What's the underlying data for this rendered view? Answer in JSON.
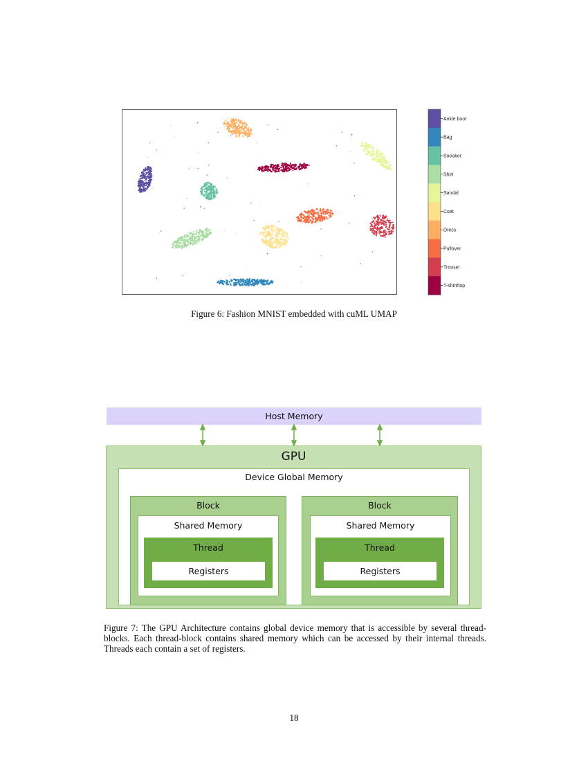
{
  "figure6": {
    "caption": "Figure 6: Fashion MNIST embedded with cuML UMAP",
    "chart_data": {
      "type": "scatter",
      "title": "",
      "xlabel": "",
      "ylabel": "",
      "grid": false,
      "legend_placement": "right (colorbar)",
      "classes": [
        {
          "name": "Ankle boot",
          "color": "#5e4fa2"
        },
        {
          "name": "Bag",
          "color": "#3288bd"
        },
        {
          "name": "Sneaker",
          "color": "#66c2a5"
        },
        {
          "name": "Shirt",
          "color": "#abdda4"
        },
        {
          "name": "Sandal",
          "color": "#e6f598"
        },
        {
          "name": "Coat",
          "color": "#fee08b"
        },
        {
          "name": "Dress",
          "color": "#fdae61"
        },
        {
          "name": "Pullover",
          "color": "#f46d43"
        },
        {
          "name": "Trouser",
          "color": "#d53e4f"
        },
        {
          "name": "T-shirt/top",
          "color": "#9e0142"
        }
      ]
    }
  },
  "figure7": {
    "host_memory": "Host Memory",
    "gpu": "GPU",
    "device_global_memory": "Device Global Memory",
    "blocks": [
      {
        "block": "Block",
        "shared_memory": "Shared Memory",
        "thread": "Thread",
        "registers": "Registers"
      },
      {
        "block": "Block",
        "shared_memory": "Shared Memory",
        "thread": "Thread",
        "registers": "Registers"
      }
    ],
    "colors": {
      "host": "#dcd3fb",
      "gpu": "#c6e0b4",
      "block": "#a9d08e",
      "thread": "#70ad47",
      "arrow": "#70ad47"
    },
    "caption": "Figure 7: The GPU Architecture contains global device memory that is accessible by several thread-blocks. Each thread-block contains shared memory which can be accessed by their internal threads. Threads each contain a set of registers."
  },
  "page_number": "18"
}
